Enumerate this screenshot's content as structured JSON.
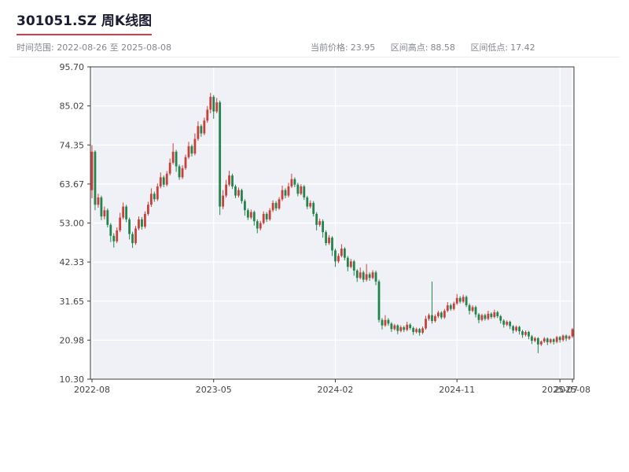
{
  "header": {
    "title": "301051.SZ 周K线图",
    "time_range": "时间范围: 2022-08-26 至 2025-08-08",
    "stats": {
      "current_label": "当前价格:",
      "current_value": "23.95",
      "high_label": "区间高点:",
      "high_value": "88.58",
      "low_label": "区间低点:",
      "low_value": "17.42"
    }
  },
  "chart_data": {
    "type": "candlestick",
    "symbol": "301051.SZ",
    "interval": "weekly",
    "title": "301051.SZ 周K线图",
    "date_start": "2022-08-26",
    "date_end": "2025-08-08",
    "current_price": 23.95,
    "range_high": 88.58,
    "range_low": 17.42,
    "ylim": [
      10.3,
      95.7
    ],
    "y_ticks": [
      95.7,
      85.02,
      74.35,
      63.67,
      53.0,
      42.33,
      31.65,
      20.98,
      10.3
    ],
    "x_ticks": [
      {
        "index": 0,
        "label": "2022-08"
      },
      {
        "index": 39,
        "label": "2023-05"
      },
      {
        "index": 78,
        "label": "2024-02"
      },
      {
        "index": 117,
        "label": "2024-11"
      },
      {
        "index": 150,
        "label": "2025-07"
      },
      {
        "index": 154,
        "label": "2025-08"
      }
    ],
    "grid": true,
    "legend": "none",
    "colors": {
      "up": "#c8403c",
      "down": "#23854d",
      "plot_bg": "#f0f1f6",
      "grid": "#ffffff",
      "axis": "#3c3c3c",
      "tick_label": "#444444",
      "accent_underline": "#d63a47"
    },
    "candles_format": [
      "open",
      "high",
      "low",
      "close"
    ],
    "candles": [
      [
        62.0,
        74.3,
        59.8,
        72.5
      ],
      [
        72.5,
        72.9,
        56.5,
        58.0
      ],
      [
        58.0,
        61.0,
        57.2,
        60.0
      ],
      [
        60.0,
        60.5,
        53.8,
        54.8
      ],
      [
        54.8,
        57.5,
        54.0,
        56.5
      ],
      [
        56.5,
        57.0,
        51.8,
        52.5
      ],
      [
        52.5,
        53.0,
        47.8,
        49.5
      ],
      [
        49.5,
        50.2,
        46.3,
        48.0
      ],
      [
        48.0,
        51.8,
        47.5,
        51.0
      ],
      [
        51.0,
        55.8,
        50.5,
        54.5
      ],
      [
        54.5,
        58.6,
        54.0,
        57.5
      ],
      [
        57.5,
        58.0,
        53.2,
        54.0
      ],
      [
        54.0,
        54.5,
        48.5,
        50.0
      ],
      [
        50.0,
        50.6,
        46.2,
        47.5
      ],
      [
        47.5,
        52.2,
        47.0,
        51.5
      ],
      [
        51.5,
        54.8,
        51.0,
        54.0
      ],
      [
        54.0,
        54.6,
        51.2,
        52.0
      ],
      [
        52.0,
        56.2,
        51.5,
        55.5
      ],
      [
        55.5,
        58.8,
        55.0,
        58.0
      ],
      [
        58.0,
        62.5,
        57.4,
        61.0
      ],
      [
        61.0,
        61.6,
        58.8,
        59.5
      ],
      [
        59.5,
        63.8,
        59.0,
        63.0
      ],
      [
        63.0,
        66.8,
        62.5,
        65.5
      ],
      [
        65.5,
        66.0,
        62.8,
        63.5
      ],
      [
        63.5,
        67.2,
        63.0,
        66.5
      ],
      [
        66.5,
        70.6,
        66.0,
        69.5
      ],
      [
        69.5,
        74.8,
        69.0,
        72.5
      ],
      [
        72.5,
        73.0,
        67.0,
        68.5
      ],
      [
        68.5,
        69.0,
        64.8,
        65.5
      ],
      [
        65.5,
        68.8,
        65.0,
        68.0
      ],
      [
        68.0,
        71.7,
        67.5,
        71.0
      ],
      [
        71.0,
        75.2,
        70.5,
        74.0
      ],
      [
        74.0,
        74.5,
        71.2,
        72.0
      ],
      [
        72.0,
        77.5,
        71.5,
        76.0
      ],
      [
        76.0,
        80.8,
        75.5,
        79.5
      ],
      [
        79.5,
        80.0,
        76.6,
        77.5
      ],
      [
        77.5,
        81.8,
        77.0,
        81.0
      ],
      [
        81.0,
        85.0,
        80.4,
        84.0
      ],
      [
        84.0,
        88.58,
        83.0,
        87.5
      ],
      [
        87.5,
        88.0,
        81.5,
        83.5
      ],
      [
        83.5,
        87.2,
        83.0,
        86.0
      ],
      [
        86.0,
        86.5,
        55.2,
        57.5
      ],
      [
        57.5,
        62.0,
        56.8,
        60.5
      ],
      [
        60.5,
        64.8,
        60.0,
        63.5
      ],
      [
        63.5,
        67.3,
        63.0,
        66.0
      ],
      [
        66.0,
        66.5,
        62.3,
        63.0
      ],
      [
        63.0,
        63.5,
        59.8,
        60.5
      ],
      [
        60.5,
        62.7,
        60.0,
        62.0
      ],
      [
        62.0,
        62.4,
        58.3,
        59.0
      ],
      [
        59.0,
        59.5,
        55.0,
        56.5
      ],
      [
        56.5,
        57.0,
        53.8,
        54.5
      ],
      [
        54.5,
        56.7,
        54.0,
        56.0
      ],
      [
        56.0,
        56.4,
        52.3,
        53.5
      ],
      [
        53.5,
        54.0,
        50.2,
        51.5
      ],
      [
        51.5,
        53.6,
        51.0,
        53.0
      ],
      [
        53.0,
        56.2,
        52.6,
        55.5
      ],
      [
        55.5,
        56.0,
        53.3,
        54.0
      ],
      [
        54.0,
        57.1,
        53.6,
        56.5
      ],
      [
        56.5,
        59.2,
        56.0,
        58.5
      ],
      [
        58.5,
        59.0,
        56.3,
        57.0
      ],
      [
        57.0,
        60.1,
        56.6,
        59.5
      ],
      [
        59.5,
        63.2,
        59.0,
        62.0
      ],
      [
        62.0,
        62.5,
        59.8,
        60.5
      ],
      [
        60.5,
        64.0,
        60.0,
        63.0
      ],
      [
        63.0,
        66.5,
        62.6,
        65.0
      ],
      [
        65.0,
        65.5,
        62.8,
        63.5
      ],
      [
        63.5,
        64.0,
        60.3,
        61.0
      ],
      [
        61.0,
        63.6,
        60.6,
        63.0
      ],
      [
        63.0,
        63.4,
        59.3,
        60.0
      ],
      [
        60.0,
        60.4,
        56.8,
        57.5
      ],
      [
        57.5,
        59.2,
        57.0,
        58.5
      ],
      [
        58.5,
        59.0,
        54.8,
        55.5
      ],
      [
        55.5,
        56.0,
        51.0,
        52.5
      ],
      [
        52.5,
        54.2,
        52.0,
        53.5
      ],
      [
        53.5,
        54.0,
        49.0,
        50.5
      ],
      [
        50.5,
        51.0,
        46.8,
        47.5
      ],
      [
        47.5,
        49.7,
        47.0,
        49.0
      ],
      [
        49.0,
        49.4,
        44.0,
        45.5
      ],
      [
        45.5,
        46.0,
        41.0,
        42.5
      ],
      [
        42.5,
        44.7,
        42.0,
        44.0
      ],
      [
        44.0,
        47.2,
        43.6,
        46.0
      ],
      [
        46.0,
        46.4,
        42.8,
        43.5
      ],
      [
        43.5,
        44.0,
        39.8,
        41.0
      ],
      [
        41.0,
        43.2,
        40.6,
        42.5
      ],
      [
        42.5,
        42.9,
        38.6,
        40.0
      ],
      [
        40.0,
        40.4,
        36.9,
        38.0
      ],
      [
        38.0,
        40.8,
        37.6,
        39.5
      ],
      [
        39.5,
        40.0,
        36.8,
        37.5
      ],
      [
        37.5,
        41.8,
        37.0,
        39.0
      ],
      [
        39.0,
        39.5,
        37.2,
        38.0
      ],
      [
        38.0,
        40.1,
        37.6,
        39.5
      ],
      [
        39.5,
        40.0,
        36.0,
        37.0
      ],
      [
        37.0,
        37.5,
        25.8,
        26.5
      ],
      [
        26.5,
        27.0,
        23.9,
        25.0
      ],
      [
        25.0,
        27.8,
        24.6,
        26.5
      ],
      [
        26.5,
        27.0,
        24.9,
        25.5
      ],
      [
        25.5,
        25.9,
        23.2,
        24.0
      ],
      [
        24.0,
        25.4,
        23.6,
        25.0
      ],
      [
        25.0,
        25.3,
        22.6,
        23.5
      ],
      [
        23.5,
        25.0,
        23.1,
        24.5
      ],
      [
        24.5,
        24.9,
        23.2,
        23.8
      ],
      [
        23.8,
        26.0,
        23.4,
        25.2
      ],
      [
        25.2,
        25.6,
        23.8,
        24.3
      ],
      [
        24.3,
        24.7,
        22.4,
        23.2
      ],
      [
        23.2,
        24.4,
        22.8,
        24.0
      ],
      [
        24.0,
        24.3,
        22.2,
        23.0
      ],
      [
        23.0,
        24.7,
        22.6,
        24.2
      ],
      [
        24.2,
        27.6,
        23.8,
        26.8
      ],
      [
        26.8,
        28.3,
        26.3,
        27.8
      ],
      [
        27.8,
        37.0,
        25.5,
        26.2
      ],
      [
        26.2,
        28.0,
        25.8,
        27.5
      ],
      [
        27.5,
        29.0,
        27.0,
        28.5
      ],
      [
        28.5,
        28.9,
        26.7,
        27.2
      ],
      [
        27.2,
        29.5,
        26.8,
        29.0
      ],
      [
        29.0,
        31.4,
        28.6,
        30.5
      ],
      [
        30.5,
        31.0,
        29.0,
        29.5
      ],
      [
        29.5,
        31.5,
        29.1,
        31.0
      ],
      [
        31.0,
        33.6,
        30.6,
        32.5
      ],
      [
        32.5,
        33.0,
        31.0,
        31.5
      ],
      [
        31.5,
        33.4,
        31.1,
        32.8
      ],
      [
        32.8,
        33.2,
        30.0,
        30.5
      ],
      [
        30.5,
        31.0,
        28.0,
        29.0
      ],
      [
        29.0,
        30.5,
        28.6,
        30.0
      ],
      [
        30.0,
        30.4,
        27.2,
        28.0
      ],
      [
        28.0,
        28.4,
        25.6,
        26.5
      ],
      [
        26.5,
        28.2,
        26.1,
        27.8
      ],
      [
        27.8,
        28.2,
        26.3,
        26.8
      ],
      [
        26.8,
        29.0,
        26.4,
        28.2
      ],
      [
        28.2,
        28.6,
        26.8,
        27.3
      ],
      [
        27.3,
        29.3,
        26.9,
        28.6
      ],
      [
        28.6,
        29.0,
        27.0,
        27.5
      ],
      [
        27.5,
        27.9,
        25.5,
        26.3
      ],
      [
        26.3,
        26.7,
        24.4,
        25.2
      ],
      [
        25.2,
        26.4,
        24.8,
        26.0
      ],
      [
        26.0,
        26.3,
        24.0,
        24.8
      ],
      [
        24.8,
        25.1,
        22.8,
        23.6
      ],
      [
        23.6,
        25.0,
        23.2,
        24.6
      ],
      [
        24.6,
        24.9,
        22.5,
        23.4
      ],
      [
        23.4,
        23.8,
        21.6,
        22.4
      ],
      [
        22.4,
        23.6,
        22.0,
        23.2
      ],
      [
        23.2,
        23.5,
        21.2,
        22.0
      ],
      [
        22.0,
        22.4,
        19.9,
        20.8
      ],
      [
        20.8,
        21.9,
        20.4,
        21.5
      ],
      [
        21.5,
        21.8,
        17.42,
        19.8
      ],
      [
        19.8,
        20.9,
        19.4,
        20.6
      ],
      [
        20.6,
        21.8,
        20.2,
        21.4
      ],
      [
        21.4,
        21.7,
        19.6,
        20.4
      ],
      [
        20.4,
        21.5,
        20.0,
        21.2
      ],
      [
        21.2,
        21.5,
        19.8,
        20.5
      ],
      [
        20.5,
        22.1,
        20.1,
        21.8
      ],
      [
        21.8,
        22.1,
        20.3,
        21.0
      ],
      [
        21.0,
        22.5,
        20.6,
        22.2
      ],
      [
        22.2,
        22.5,
        20.7,
        21.4
      ],
      [
        21.4,
        22.3,
        21.0,
        22.0
      ],
      [
        22.0,
        24.3,
        21.6,
        23.95
      ]
    ]
  }
}
